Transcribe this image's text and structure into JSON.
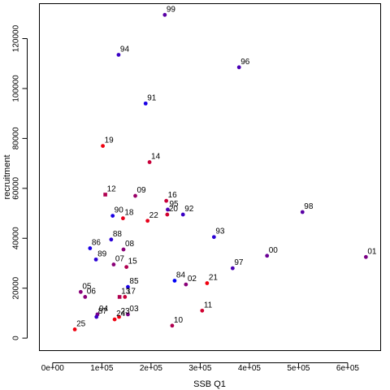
{
  "chart_data": {
    "type": "scatter",
    "title": "",
    "xlabel": "SSB Q1",
    "ylabel": "recruitment",
    "xlim": [
      -27000,
      667000
    ],
    "ylim": [
      -5000,
      134000
    ],
    "grid": false,
    "legend": "none",
    "x_ticks": [
      {
        "value": 0,
        "label": "0e+00"
      },
      {
        "value": 100000,
        "label": "1e+05"
      },
      {
        "value": 200000,
        "label": "2e+05"
      },
      {
        "value": 300000,
        "label": "3e+05"
      },
      {
        "value": 400000,
        "label": "4e+05"
      },
      {
        "value": 500000,
        "label": "5e+05"
      },
      {
        "value": 600000,
        "label": "6e+05"
      }
    ],
    "y_ticks": [
      {
        "value": 0,
        "label": "0"
      },
      {
        "value": 20000,
        "label": "20000"
      },
      {
        "value": 40000,
        "label": "40000"
      },
      {
        "value": 60000,
        "label": "60000"
      },
      {
        "value": 80000,
        "label": "80000"
      },
      {
        "value": 100000,
        "label": "100000"
      },
      {
        "value": 120000,
        "label": "120000"
      }
    ],
    "points": [
      {
        "label": "99",
        "x": 228000,
        "y": 129500,
        "color": "#5a00a5",
        "shape": "circle"
      },
      {
        "label": "94",
        "x": 134000,
        "y": 113500,
        "color": "#3a00c5",
        "shape": "circle"
      },
      {
        "label": "96",
        "x": 379000,
        "y": 108500,
        "color": "#4a00b5",
        "shape": "circle"
      },
      {
        "label": "91",
        "x": 189000,
        "y": 94000,
        "color": "#1a00e5",
        "shape": "circle"
      },
      {
        "label": "19",
        "x": 102000,
        "y": 77000,
        "color": "#f0000f",
        "shape": "circle"
      },
      {
        "label": "14",
        "x": 197000,
        "y": 70500,
        "color": "#c8003a",
        "shape": "circle"
      },
      {
        "label": "12",
        "x": 107000,
        "y": 57500,
        "color": "#b00050",
        "shape": "square"
      },
      {
        "label": "09",
        "x": 168000,
        "y": 57000,
        "color": "#9a0068",
        "shape": "circle"
      },
      {
        "label": "16",
        "x": 231000,
        "y": 55000,
        "color": "#c8003a",
        "shape": "circle"
      },
      {
        "label": "95",
        "x": 234000,
        "y": 51500,
        "color": "#4a00b5",
        "shape": "circle"
      },
      {
        "label": "20",
        "x": 233000,
        "y": 49500,
        "color": "#d0002f",
        "shape": "circle"
      },
      {
        "label": "92",
        "x": 265000,
        "y": 49500,
        "color": "#3a00c5",
        "shape": "circle"
      },
      {
        "label": "90",
        "x": 122000,
        "y": 49000,
        "color": "#1a00e5",
        "shape": "circle"
      },
      {
        "label": "18",
        "x": 143000,
        "y": 48000,
        "color": "#e8001a",
        "shape": "circle"
      },
      {
        "label": "22",
        "x": 193000,
        "y": 47000,
        "color": "#e8001a",
        "shape": "circle"
      },
      {
        "label": "98",
        "x": 508000,
        "y": 50500,
        "color": "#5a00a5",
        "shape": "circle"
      },
      {
        "label": "93",
        "x": 328000,
        "y": 40500,
        "color": "#2a00d5",
        "shape": "circle"
      },
      {
        "label": "88",
        "x": 119000,
        "y": 39500,
        "color": "#2a00d5",
        "shape": "circle"
      },
      {
        "label": "86",
        "x": 76000,
        "y": 36000,
        "color": "#1a00e5",
        "shape": "circle"
      },
      {
        "label": "08",
        "x": 144000,
        "y": 35500,
        "color": "#8a0078",
        "shape": "circle"
      },
      {
        "label": "00",
        "x": 436000,
        "y": 33000,
        "color": "#6a0095",
        "shape": "circle"
      },
      {
        "label": "01",
        "x": 637000,
        "y": 32500,
        "color": "#7a0085",
        "shape": "circle"
      },
      {
        "label": "89",
        "x": 88000,
        "y": 31500,
        "color": "#2a00d5",
        "shape": "circle"
      },
      {
        "label": "07",
        "x": 124000,
        "y": 29500,
        "color": "#8a0078",
        "shape": "circle"
      },
      {
        "label": "15",
        "x": 150000,
        "y": 28500,
        "color": "#b00050",
        "shape": "circle"
      },
      {
        "label": "97",
        "x": 366000,
        "y": 28000,
        "color": "#4a00b5",
        "shape": "circle"
      },
      {
        "label": "84",
        "x": 248000,
        "y": 23000,
        "color": "#0000f5",
        "shape": "circle"
      },
      {
        "label": "02",
        "x": 271000,
        "y": 21500,
        "color": "#8a0078",
        "shape": "circle"
      },
      {
        "label": "21",
        "x": 314000,
        "y": 22000,
        "color": "#f0000f",
        "shape": "circle"
      },
      {
        "label": "85",
        "x": 153000,
        "y": 20500,
        "color": "#1a00e5",
        "shape": "circle"
      },
      {
        "label": "05",
        "x": 57000,
        "y": 18500,
        "color": "#8a0078",
        "shape": "circle"
      },
      {
        "label": "06",
        "x": 66000,
        "y": 16500,
        "color": "#8a0078",
        "shape": "circle"
      },
      {
        "label": "13",
        "x": 136000,
        "y": 16500,
        "color": "#b00050",
        "shape": "square"
      },
      {
        "label": "17",
        "x": 147000,
        "y": 16500,
        "color": "#c8003a",
        "shape": "circle"
      },
      {
        "label": "11",
        "x": 304000,
        "y": 11000,
        "color": "#d0002f",
        "shape": "circle"
      },
      {
        "label": "04",
        "x": 91000,
        "y": 9500,
        "color": "#7a0085",
        "shape": "circle"
      },
      {
        "label": "87",
        "x": 89000,
        "y": 8500,
        "color": "#3a00c5",
        "shape": "circle"
      },
      {
        "label": "03",
        "x": 153000,
        "y": 9500,
        "color": "#7a0085",
        "shape": "circle"
      },
      {
        "label": "23",
        "x": 135000,
        "y": 8500,
        "color": "#f0000f",
        "shape": "circle"
      },
      {
        "label": "24",
        "x": 126000,
        "y": 7500,
        "color": "#f0000f",
        "shape": "circle"
      },
      {
        "label": "10",
        "x": 243000,
        "y": 5000,
        "color": "#b00050",
        "shape": "circle"
      },
      {
        "label": "25",
        "x": 45000,
        "y": 3500,
        "color": "#f0000f",
        "shape": "circle"
      }
    ]
  }
}
